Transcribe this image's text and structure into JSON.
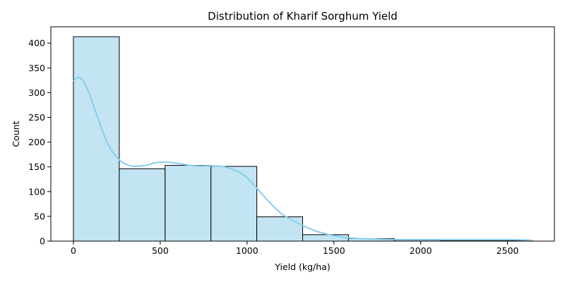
{
  "chart_data": {
    "type": "bar",
    "title": "Distribution of Kharif Sorghum Yield",
    "xlabel": "Yield (kg/ha)",
    "ylabel": "Count",
    "xlim": [
      -130,
      2770
    ],
    "ylim": [
      0,
      433
    ],
    "xticks": [
      0,
      500,
      1000,
      1500,
      2000,
      2500
    ],
    "yticks": [
      0,
      50,
      100,
      150,
      200,
      250,
      300,
      350,
      400
    ],
    "bins": [
      {
        "x0": 0,
        "x1": 264,
        "count": 413
      },
      {
        "x0": 264,
        "x1": 528,
        "count": 146
      },
      {
        "x0": 528,
        "x1": 792,
        "count": 153
      },
      {
        "x0": 792,
        "x1": 1056,
        "count": 151
      },
      {
        "x0": 1056,
        "x1": 1320,
        "count": 49
      },
      {
        "x0": 1320,
        "x1": 1584,
        "count": 13
      },
      {
        "x0": 1584,
        "x1": 1848,
        "count": 5
      },
      {
        "x0": 1848,
        "x1": 2112,
        "count": 2
      },
      {
        "x0": 2112,
        "x1": 2376,
        "count": 1
      },
      {
        "x0": 2376,
        "x1": 2640,
        "count": 1
      }
    ],
    "kde": {
      "x": [
        0,
        25,
        60,
        100,
        150,
        200,
        264,
        330,
        400,
        470,
        528,
        600,
        700,
        792,
        870,
        950,
        1000,
        1056,
        1120,
        1200,
        1300,
        1400,
        1500,
        1600,
        1750,
        1900,
        2100,
        2300,
        2500,
        2640
      ],
      "y": [
        323,
        331,
        322,
        290,
        240,
        195,
        164,
        152,
        152,
        158,
        160,
        157,
        152,
        152,
        150,
        140,
        128,
        107,
        82,
        55,
        35,
        20,
        11,
        6,
        4,
        3,
        3,
        3,
        3,
        2
      ]
    },
    "colors": {
      "bar_fill": "#c3e5f3",
      "bar_edge": "#000000",
      "kde_line": "#87ceeb"
    },
    "grid": false,
    "legend": "none"
  }
}
